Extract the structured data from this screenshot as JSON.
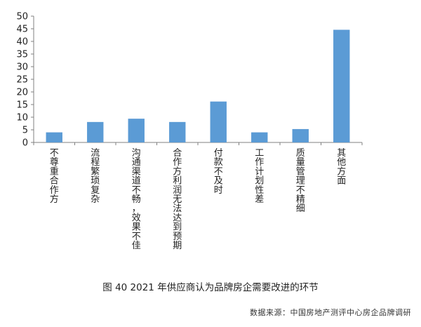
{
  "caption": "图 40  2021 年供应商认为品牌房企需要改进的环节",
  "source": "数据来源：中国房地产测评中心房企品牌调研",
  "chart_data": {
    "type": "bar",
    "title": "",
    "xlabel": "",
    "ylabel": "",
    "ylim": [
      0,
      50
    ],
    "yticks": [
      0,
      5,
      10,
      15,
      20,
      25,
      30,
      35,
      40,
      45,
      50
    ],
    "grid": false,
    "legend": "none",
    "bar_color": "#5b9bd5",
    "categories": [
      "不尊重合作方",
      "流程繁琐复杂",
      "沟通渠道不畅，效果不佳",
      "合作方利润无法达到预期",
      "付款不及时",
      "工作计划性差",
      "质量管理不精细",
      "其他方面"
    ],
    "values": [
      4,
      8.1,
      9.4,
      8.1,
      16.2,
      4,
      5.3,
      44.6
    ]
  }
}
